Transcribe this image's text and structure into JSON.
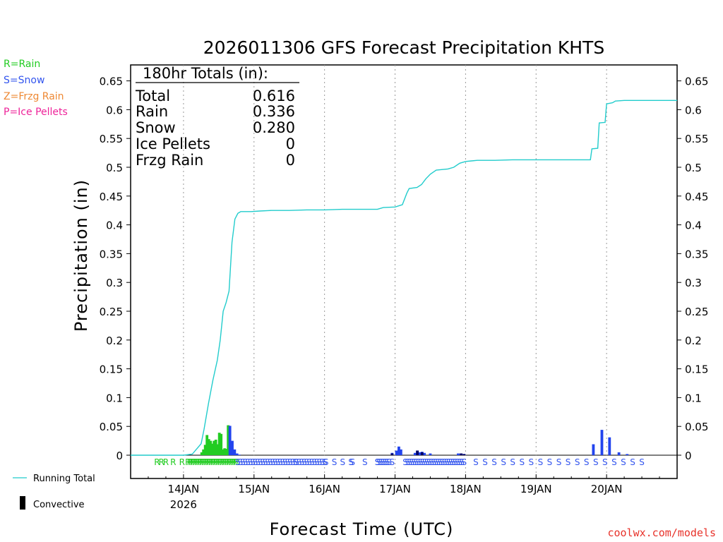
{
  "chart_data": {
    "type": "bar+line",
    "title": "2026011306 GFS Forecast Precipitation KHTS",
    "ylabel": "Precipitation (in)",
    "xlabel": "Forecast Time (UTC)",
    "ylim": [
      0,
      0.675
    ],
    "yticks": [
      "0",
      "0.05",
      "0.1",
      "0.15",
      "0.2",
      "0.25",
      "0.3",
      "0.35",
      "0.4",
      "0.45",
      "0.5",
      "0.55",
      "0.6",
      "0.65"
    ],
    "xlim_hours": [
      0,
      186
    ],
    "xticks": [
      {
        "label": "14JAN",
        "hour": 18,
        "sub": "2026"
      },
      {
        "label": "15JAN",
        "hour": 42
      },
      {
        "label": "16JAN",
        "hour": 66
      },
      {
        "label": "17JAN",
        "hour": 90
      },
      {
        "label": "18JAN",
        "hour": 114
      },
      {
        "label": "19JAN",
        "hour": 138
      },
      {
        "label": "20JAN",
        "hour": 162
      }
    ],
    "legend_types": [
      {
        "text": "R=Rain",
        "color": "#22cc22"
      },
      {
        "text": "S=Snow",
        "color": "#3355ee"
      },
      {
        "text": "Z=Frzg Rain",
        "color": "#ee8833"
      },
      {
        "text": "P=Ice Pellets",
        "color": "#ee2299"
      }
    ],
    "legend_lines": [
      {
        "text": "Running Total",
        "color": "#22cccc"
      },
      {
        "text": "Convective",
        "color": "#000000"
      }
    ],
    "totals_box": {
      "header": "180hr Totals (in):",
      "rows": [
        {
          "label": "Total",
          "value": "0.616"
        },
        {
          "label": "Rain",
          "value": "0.336"
        },
        {
          "label": "Snow",
          "value": "0.280"
        },
        {
          "label": "Ice Pellets",
          "value": "0"
        },
        {
          "label": "Frzg Rain",
          "value": "0"
        }
      ]
    },
    "bars": {
      "bar_width_hours": 0.8,
      "rain": [
        {
          "hour": 24.2,
          "value": 0.005
        },
        {
          "hour": 24.8,
          "value": 0.01
        },
        {
          "hour": 25.4,
          "value": 0.018
        },
        {
          "hour": 26.0,
          "value": 0.035
        },
        {
          "hour": 26.6,
          "value": 0.028
        },
        {
          "hour": 27.2,
          "value": 0.025
        },
        {
          "hour": 27.8,
          "value": 0.02
        },
        {
          "hour": 28.4,
          "value": 0.025
        },
        {
          "hour": 29.0,
          "value": 0.027
        },
        {
          "hour": 29.6,
          "value": 0.019
        },
        {
          "hour": 30.2,
          "value": 0.039
        },
        {
          "hour": 30.8,
          "value": 0.037
        },
        {
          "hour": 31.4,
          "value": 0.01
        },
        {
          "hour": 32.0,
          "value": 0.012
        },
        {
          "hour": 32.6,
          "value": 0.011
        },
        {
          "hour": 33.2,
          "value": 0.052
        }
      ],
      "snow": [
        {
          "hour": 33.8,
          "value": 0.051
        },
        {
          "hour": 34.6,
          "value": 0.025
        },
        {
          "hour": 35.4,
          "value": 0.01
        },
        {
          "hour": 36.2,
          "value": 0.003
        },
        {
          "hour": 37.0,
          "value": 0.001
        },
        {
          "hour": 89.0,
          "value": 0.004
        },
        {
          "hour": 90.5,
          "value": 0.008
        },
        {
          "hour": 91.3,
          "value": 0.015
        },
        {
          "hour": 92.0,
          "value": 0.01
        },
        {
          "hour": 96.8,
          "value": 0.004
        },
        {
          "hour": 97.6,
          "value": 0.008
        },
        {
          "hour": 98.4,
          "value": 0.005
        },
        {
          "hour": 99.2,
          "value": 0.006
        },
        {
          "hour": 100.0,
          "value": 0.004
        },
        {
          "hour": 102.0,
          "value": 0.003
        },
        {
          "hour": 111.5,
          "value": 0.003
        },
        {
          "hour": 112.5,
          "value": 0.003
        },
        {
          "hour": 113.5,
          "value": 0.002
        },
        {
          "hour": 157.5,
          "value": 0.019
        },
        {
          "hour": 160.4,
          "value": 0.044
        },
        {
          "hour": 163.0,
          "value": 0.031
        },
        {
          "hour": 166.2,
          "value": 0.005
        },
        {
          "hour": 169.0,
          "value": 0.002
        }
      ],
      "convective": [
        {
          "hour": 89.0,
          "value": 0.003
        },
        {
          "hour": 97.6,
          "value": 0.008
        },
        {
          "hour": 99.2,
          "value": 0.005
        },
        {
          "hour": 112.5,
          "value": 0.003
        },
        {
          "hour": 113.5,
          "value": 0.002
        }
      ]
    },
    "running_total": [
      [
        0,
        0
      ],
      [
        18,
        0
      ],
      [
        21,
        0.002
      ],
      [
        24,
        0.02
      ],
      [
        25,
        0.045
      ],
      [
        26.5,
        0.09
      ],
      [
        28,
        0.13
      ],
      [
        29.5,
        0.165
      ],
      [
        30.5,
        0.2
      ],
      [
        31.5,
        0.25
      ],
      [
        32.5,
        0.265
      ],
      [
        33.5,
        0.285
      ],
      [
        34.5,
        0.37
      ],
      [
        35.5,
        0.41
      ],
      [
        36.5,
        0.42
      ],
      [
        37.5,
        0.423
      ],
      [
        41,
        0.423
      ],
      [
        44,
        0.424
      ],
      [
        48,
        0.425
      ],
      [
        54,
        0.425
      ],
      [
        60,
        0.426
      ],
      [
        66,
        0.426
      ],
      [
        72,
        0.427
      ],
      [
        78,
        0.427
      ],
      [
        84,
        0.427
      ],
      [
        86,
        0.43
      ],
      [
        90,
        0.431
      ],
      [
        92.5,
        0.435
      ],
      [
        94,
        0.455
      ],
      [
        94.8,
        0.463
      ],
      [
        97.5,
        0.465
      ],
      [
        99,
        0.47
      ],
      [
        100.5,
        0.48
      ],
      [
        102,
        0.488
      ],
      [
        104,
        0.495
      ],
      [
        108,
        0.497
      ],
      [
        110,
        0.5
      ],
      [
        112,
        0.507
      ],
      [
        114,
        0.51
      ],
      [
        116,
        0.511
      ],
      [
        118,
        0.512
      ],
      [
        124,
        0.512
      ],
      [
        130,
        0.513
      ],
      [
        138,
        0.513
      ],
      [
        148,
        0.513
      ],
      [
        155,
        0.513
      ],
      [
        156.5,
        0.513
      ],
      [
        157,
        0.532
      ],
      [
        159,
        0.533
      ],
      [
        159.5,
        0.577
      ],
      [
        161.5,
        0.578
      ],
      [
        162,
        0.61
      ],
      [
        164,
        0.612
      ],
      [
        165,
        0.615
      ],
      [
        168,
        0.616
      ],
      [
        186,
        0.616
      ]
    ],
    "precip_type_row": [
      {
        "letter": "R",
        "start": 9,
        "end": 12,
        "count": 3
      },
      {
        "letter": "R",
        "start": 14.5,
        "end": 17.5,
        "count": 2
      },
      {
        "letter": "R",
        "start": 19.5,
        "end": 36,
        "count": 28
      },
      {
        "letter": "S",
        "start": 36.5,
        "end": 56,
        "count": 24
      },
      {
        "letter": "S",
        "start": 56.5,
        "end": 66,
        "count": 12
      },
      {
        "letter": "S",
        "start": 66.5,
        "end": 75,
        "count": 4
      },
      {
        "letter": "S",
        "start": 75.5,
        "end": 84,
        "count": 3
      },
      {
        "letter": "S",
        "start": 84,
        "end": 88,
        "count": 7
      },
      {
        "letter": "S",
        "start": 89,
        "end": 91.5,
        "count": 1
      },
      {
        "letter": "S",
        "start": 93.5,
        "end": 113.5,
        "count": 28
      },
      {
        "letter": "S",
        "start": 117.5,
        "end": 174,
        "count": 19
      }
    ]
  },
  "footer": {
    "watermark": "coolwx.com/models"
  }
}
